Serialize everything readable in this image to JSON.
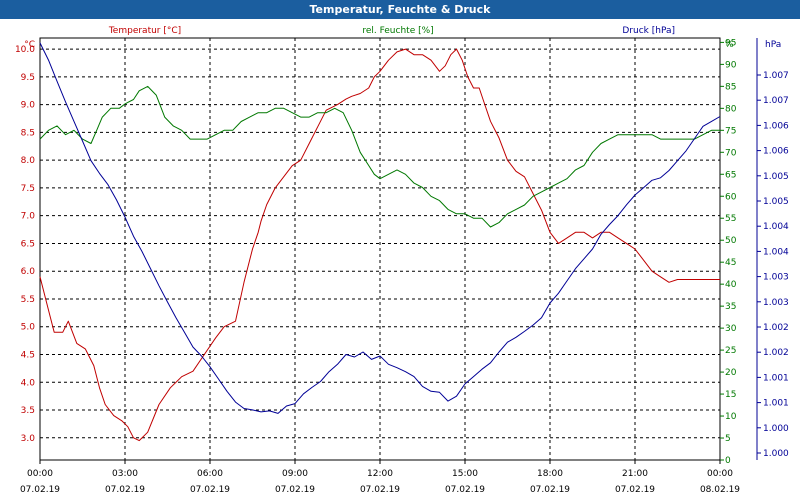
{
  "window": {
    "title": "Temperatur, Feuchte & Druck"
  },
  "colors": {
    "temperature": "#c00000",
    "humidity": "#007800",
    "pressure": "#000096",
    "title_bar": "#1b5e9f"
  },
  "chart_data": {
    "type": "line",
    "title": "Temperatur, Feuchte & Druck",
    "legend": [
      "Temperatur [°C]",
      "rel. Feuchte [%]",
      "Druck [hPa]"
    ],
    "axes": {
      "y_left": {
        "unit_label": "°C",
        "ylim": [
          2.6,
          10.2
        ],
        "ticks": [
          "10.0",
          "9.5",
          "9.0",
          "8.5",
          "8.0",
          "7.5",
          "7.0",
          "6.5",
          "6.0",
          "5.5",
          "5.0",
          "4.5",
          "4.0",
          "3.5",
          "3.0"
        ]
      },
      "y_humidity": {
        "unit_label": "%",
        "ylim": [
          0,
          96
        ],
        "ticks": [
          "95",
          "90",
          "85",
          "80",
          "75",
          "70",
          "65",
          "60",
          "55",
          "50",
          "45",
          "40",
          "35",
          "30",
          "25",
          "20",
          "15",
          "10",
          "5",
          "0"
        ]
      },
      "y_pressure": {
        "unit_label": "hPa",
        "ylim": [
          0.999,
          1.0076
        ],
        "ticks": [
          "1.007",
          "1.007",
          "1.006",
          "1.006",
          "1.005",
          "1.005",
          "1.004",
          "1.004",
          "1.003",
          "1.003",
          "1.002",
          "1.002",
          "1.001",
          "1.001",
          "1.000",
          "1.000"
        ]
      },
      "x": {
        "ticks": [
          {
            "time": "00:00",
            "date": "07.02.19"
          },
          {
            "time": "03:00",
            "date": "07.02.19"
          },
          {
            "time": "06:00",
            "date": "07.02.19"
          },
          {
            "time": "09:00",
            "date": "07.02.19"
          },
          {
            "time": "12:00",
            "date": "07.02.19"
          },
          {
            "time": "15:00",
            "date": "07.02.19"
          },
          {
            "time": "18:00",
            "date": "07.02.19"
          },
          {
            "time": "21:00",
            "date": "07.02.19"
          },
          {
            "time": "00:00",
            "date": "08.02.19"
          }
        ]
      }
    },
    "grid": true,
    "series": [
      {
        "name": "Temperatur [°C]",
        "axis": "y_left",
        "color": "#c00000",
        "x": [
          0,
          0.3,
          0.5,
          0.8,
          1.0,
          1.3,
          1.6,
          1.9,
          2.1,
          2.3,
          2.6,
          2.9,
          3.1,
          3.3,
          3.5,
          3.8,
          4.2,
          4.6,
          5.0,
          5.4,
          5.8,
          6.2,
          6.5,
          6.9,
          7.2,
          7.5,
          7.7,
          7.8,
          8.0,
          8.3,
          8.6,
          8.9,
          9.2,
          9.5,
          9.8,
          10.1,
          10.5,
          10.8,
          11.0,
          11.3,
          11.6,
          11.8,
          12.0,
          12.3,
          12.6,
          12.9,
          13.2,
          13.5,
          13.8,
          14.1,
          14.3,
          14.5,
          14.7,
          14.9,
          15.1,
          15.3,
          15.5,
          15.7,
          15.9,
          16.2,
          16.5,
          16.8,
          17.1,
          17.4,
          17.7,
          18.0,
          18.3,
          18.6,
          18.9,
          19.2,
          19.5,
          19.8,
          20.1,
          20.4,
          20.7,
          21.0,
          21.3,
          21.6,
          21.9,
          22.2,
          22.5,
          22.8,
          23.1,
          23.4,
          23.7,
          24.0
        ],
        "y": [
          5.9,
          5.3,
          4.9,
          4.9,
          5.1,
          4.7,
          4.6,
          4.3,
          3.9,
          3.6,
          3.4,
          3.3,
          3.2,
          3.0,
          2.95,
          3.1,
          3.6,
          3.9,
          4.1,
          4.2,
          4.5,
          4.8,
          5.0,
          5.1,
          5.8,
          6.4,
          6.7,
          6.9,
          7.2,
          7.5,
          7.7,
          7.9,
          8.0,
          8.3,
          8.6,
          8.9,
          9.0,
          9.1,
          9.15,
          9.2,
          9.3,
          9.5,
          9.6,
          9.8,
          9.95,
          10.0,
          9.9,
          9.9,
          9.8,
          9.6,
          9.7,
          9.9,
          10.0,
          9.8,
          9.5,
          9.3,
          9.3,
          9.0,
          8.7,
          8.4,
          8.0,
          7.8,
          7.7,
          7.4,
          7.1,
          6.7,
          6.5,
          6.6,
          6.7,
          6.7,
          6.6,
          6.7,
          6.7,
          6.6,
          6.5,
          6.4,
          6.2,
          6.0,
          5.9,
          5.8,
          5.85,
          5.85,
          5.85,
          5.85,
          5.85,
          5.85
        ]
      },
      {
        "name": "rel. Feuchte [%]",
        "axis": "y_humidity",
        "color": "#007800",
        "x": [
          0,
          0.3,
          0.6,
          0.9,
          1.2,
          1.5,
          1.8,
          2.0,
          2.2,
          2.5,
          2.8,
          3.0,
          3.3,
          3.5,
          3.8,
          4.1,
          4.4,
          4.7,
          5.0,
          5.3,
          5.6,
          5.9,
          6.2,
          6.5,
          6.8,
          7.1,
          7.4,
          7.7,
          8.0,
          8.3,
          8.6,
          8.9,
          9.2,
          9.5,
          9.8,
          10.1,
          10.4,
          10.7,
          11.0,
          11.3,
          11.6,
          11.8,
          12.0,
          12.3,
          12.6,
          12.9,
          13.2,
          13.5,
          13.8,
          14.1,
          14.4,
          14.7,
          15.0,
          15.3,
          15.6,
          15.9,
          16.2,
          16.5,
          16.8,
          17.1,
          17.4,
          17.7,
          18.0,
          18.3,
          18.6,
          18.9,
          19.2,
          19.5,
          19.8,
          20.1,
          20.4,
          20.7,
          21.0,
          21.3,
          21.6,
          21.9,
          22.2,
          22.5,
          22.8,
          23.1,
          23.4,
          23.7,
          24.0
        ],
        "y": [
          73,
          75,
          76,
          74,
          75,
          73,
          72,
          75,
          78,
          80,
          80,
          81,
          82,
          84,
          85,
          83,
          78,
          76,
          75,
          73,
          73,
          73,
          74,
          75,
          75,
          77,
          78,
          79,
          79,
          80,
          80,
          79,
          78,
          78,
          79,
          79,
          80,
          79,
          75,
          70,
          67,
          65,
          64,
          65,
          66,
          65,
          63,
          62,
          60,
          59,
          57,
          56,
          56,
          55,
          55,
          53,
          54,
          56,
          57,
          58,
          60,
          61,
          62,
          63,
          64,
          66,
          67,
          70,
          72,
          73,
          74,
          74,
          74,
          74,
          74,
          73,
          73,
          73,
          73,
          73,
          74,
          75,
          75
        ]
      },
      {
        "name": "Druck [hPa]",
        "axis": "y_pressure",
        "color": "#000096",
        "x": [
          0,
          0.3,
          0.6,
          0.9,
          1.2,
          1.5,
          1.8,
          2.1,
          2.4,
          2.7,
          3.0,
          3.3,
          3.6,
          3.9,
          4.2,
          4.5,
          4.8,
          5.1,
          5.4,
          5.7,
          6.0,
          6.3,
          6.6,
          6.9,
          7.2,
          7.5,
          7.8,
          8.1,
          8.4,
          8.7,
          9.0,
          9.3,
          9.6,
          9.9,
          10.2,
          10.5,
          10.8,
          11.1,
          11.4,
          11.7,
          12.0,
          12.3,
          12.6,
          12.9,
          13.2,
          13.5,
          13.8,
          14.1,
          14.4,
          14.7,
          15.0,
          15.3,
          15.6,
          15.9,
          16.2,
          16.5,
          16.8,
          17.1,
          17.4,
          17.7,
          18.0,
          18.3,
          18.6,
          18.9,
          19.2,
          19.5,
          19.8,
          20.1,
          20.4,
          20.7,
          21.0,
          21.3,
          21.6,
          21.9,
          22.2,
          22.5,
          22.8,
          23.1,
          23.4,
          23.7,
          24.0
        ],
        "y": [
          1.0075,
          1.00715,
          1.00672,
          1.0063,
          1.0059,
          1.0055,
          1.0051,
          1.00484,
          1.00461,
          1.0043,
          1.00395,
          1.00356,
          1.00325,
          1.0029,
          1.00255,
          1.00222,
          1.0019,
          1.0016,
          1.0013,
          1.00112,
          1.0009,
          1.00065,
          1.0004,
          1.00018,
          1.00005,
          1.00002,
          0.99998,
          1.0,
          0.99995,
          1.0001,
          1.00015,
          1.00035,
          1.00048,
          1.0006,
          1.0008,
          1.00095,
          1.00115,
          1.0011,
          1.0012,
          1.00105,
          1.00112,
          1.00095,
          1.00088,
          1.0008,
          1.0007,
          1.0005,
          1.0004,
          1.00038,
          1.0002,
          1.0003,
          1.00055,
          1.0007,
          1.00085,
          1.00098,
          1.0012,
          1.0014,
          1.0015,
          1.00162,
          1.00175,
          1.0019,
          1.0022,
          1.0024,
          1.00265,
          1.0029,
          1.0031,
          1.0033,
          1.0036,
          1.0038,
          1.00398,
          1.0042,
          1.0044,
          1.00455,
          1.0047,
          1.00475,
          1.0049,
          1.0051,
          1.0053,
          1.00555,
          1.0058,
          1.0059,
          1.006
        ]
      }
    ]
  }
}
